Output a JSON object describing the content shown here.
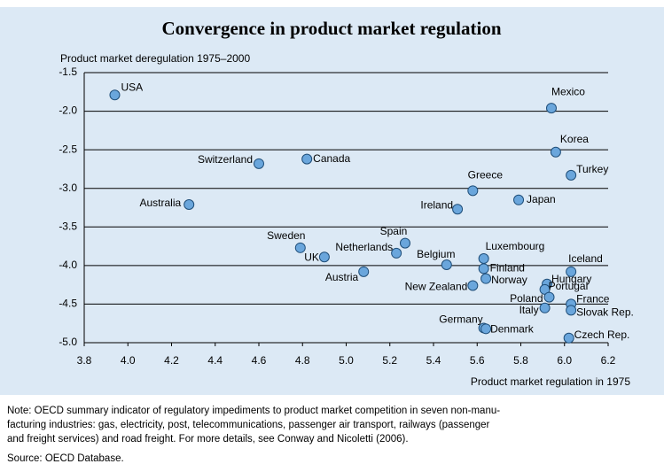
{
  "chart_data": {
    "type": "scatter",
    "title": "Convergence in product market regulation",
    "y_axis_label": "Product market deregulation 1975–2000",
    "x_axis_label": "Product market regulation in 1975",
    "color": "#6aa6dc",
    "point_labels": [
      "USA",
      "Mexico",
      "Korea",
      "Turkey",
      "Switzerland",
      "Canada",
      "Greece",
      "Japan",
      "Ireland",
      "Australia",
      "Spain",
      "Sweden",
      "Netherlands",
      "UK",
      "Luxembourg",
      "Belgium",
      "Finland",
      "Iceland",
      "Austria",
      "Norway",
      "New Zealand",
      "Hungary",
      "Portugal",
      "Poland",
      "France",
      "Italy",
      "Slovak Rep.",
      "Germany",
      "Denmark",
      "Czech Rep."
    ],
    "x": [
      3.94,
      5.94,
      5.96,
      6.03,
      4.6,
      4.82,
      5.58,
      5.79,
      5.51,
      4.28,
      5.27,
      4.79,
      5.23,
      4.9,
      5.63,
      5.46,
      5.63,
      6.03,
      5.08,
      5.64,
      5.58,
      5.92,
      5.91,
      5.93,
      6.03,
      5.91,
      6.03,
      5.63,
      5.64,
      6.02
    ],
    "values": [
      -1.79,
      -1.96,
      -2.53,
      -2.83,
      -2.68,
      -2.62,
      -3.03,
      -3.15,
      -3.27,
      -3.21,
      -3.71,
      -3.77,
      -3.84,
      -3.89,
      -3.91,
      -3.99,
      -4.04,
      -4.08,
      -4.08,
      -4.17,
      -4.26,
      -4.24,
      -4.31,
      -4.41,
      -4.5,
      -4.55,
      -4.58,
      -4.81,
      -4.82,
      -4.94
    ],
    "xlim": [
      3.8,
      6.2
    ],
    "ylim": [
      -5.0,
      -1.5
    ],
    "xticks": [
      3.8,
      {
        "value": 4,
        "label": "4.0"
      },
      4.2,
      4.4,
      4.6,
      4.8,
      {
        "value": 5,
        "label": "5.0"
      },
      5.2,
      5.4,
      5.6,
      5.8,
      {
        "value": 6,
        "label": "6.0"
      },
      6.2
    ],
    "yticks": [
      -1.5,
      {
        "value": -2,
        "label": "-2.0"
      },
      -2.5,
      {
        "value": -3,
        "label": "-3.0"
      },
      -3.5,
      {
        "value": -4,
        "label": "-4.0"
      },
      -4.5,
      {
        "value": -5,
        "label": "-5.0"
      }
    ],
    "grid": true,
    "note": [
      "Note: OECD summary indicator of regulatory impediments to product market competition in seven non-manu-",
      "facturing industries: gas, electricity, post, telecommunications, passenger air transport, railways (passenger",
      "and freight services) and road freight. For more details, see Conway and Nicoletti (2006)."
    ],
    "source": "Source: OECD Database."
  }
}
